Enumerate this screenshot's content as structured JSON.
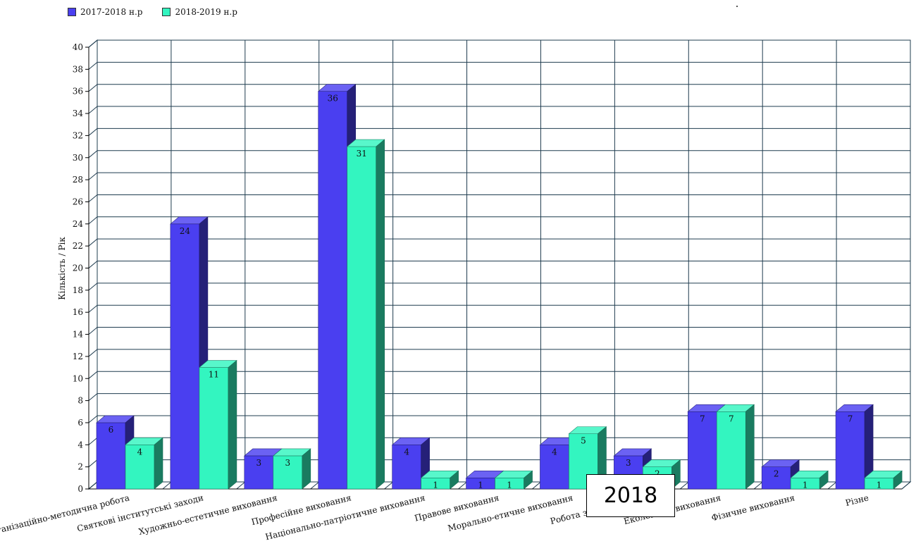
{
  "chart_data": {
    "type": "bar",
    "ylabel": "Кількість / Рік",
    "ylim": [
      0,
      40
    ],
    "ytick_step": 2,
    "grid": true,
    "legend_position": "top-left",
    "categories": [
      "Організаційно-методична робота",
      "Святкові інститутські заходи",
      "Художньо-естетичне виховання",
      "Професійне виховання",
      "Національно-патріотичне виховання",
      "Правове виховання",
      "Морально-етичне виховання",
      "Робота з вихованцями",
      "Екологічне виховання",
      "Фізичне виховання",
      "Різне"
    ],
    "series": [
      {
        "name": "2017-2018 н.р",
        "color": "#4a3ff0",
        "values": [
          6,
          24,
          3,
          36,
          4,
          1,
          4,
          3,
          7,
          2,
          7
        ]
      },
      {
        "name": "2018-2019 н.р",
        "color": "#33f5c0",
        "values": [
          4,
          11,
          3,
          31,
          1,
          1,
          5,
          2,
          7,
          1,
          1
        ]
      }
    ]
  },
  "overlay": {
    "label": "2018"
  }
}
